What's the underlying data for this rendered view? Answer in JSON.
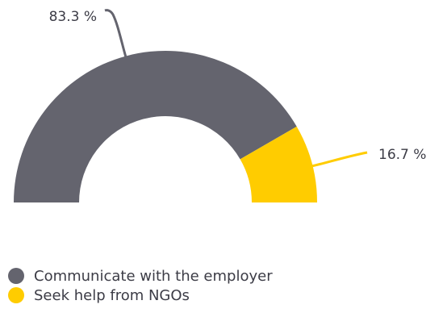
{
  "chart_data": {
    "type": "pie",
    "variant": "half-donut",
    "categories": [
      "Communicate with the employer",
      "Seek help from NGOs"
    ],
    "values": [
      83.3,
      16.7
    ],
    "data_labels": [
      "83.3 %",
      "16.7 %"
    ],
    "colors": [
      "#64646e",
      "#ffcc00"
    ],
    "legend": {
      "position": "bottom-left",
      "items": [
        {
          "label": "Communicate with the employer",
          "color": "#64646e"
        },
        {
          "label": "Seek help from NGOs",
          "color": "#ffcc00"
        }
      ]
    }
  }
}
